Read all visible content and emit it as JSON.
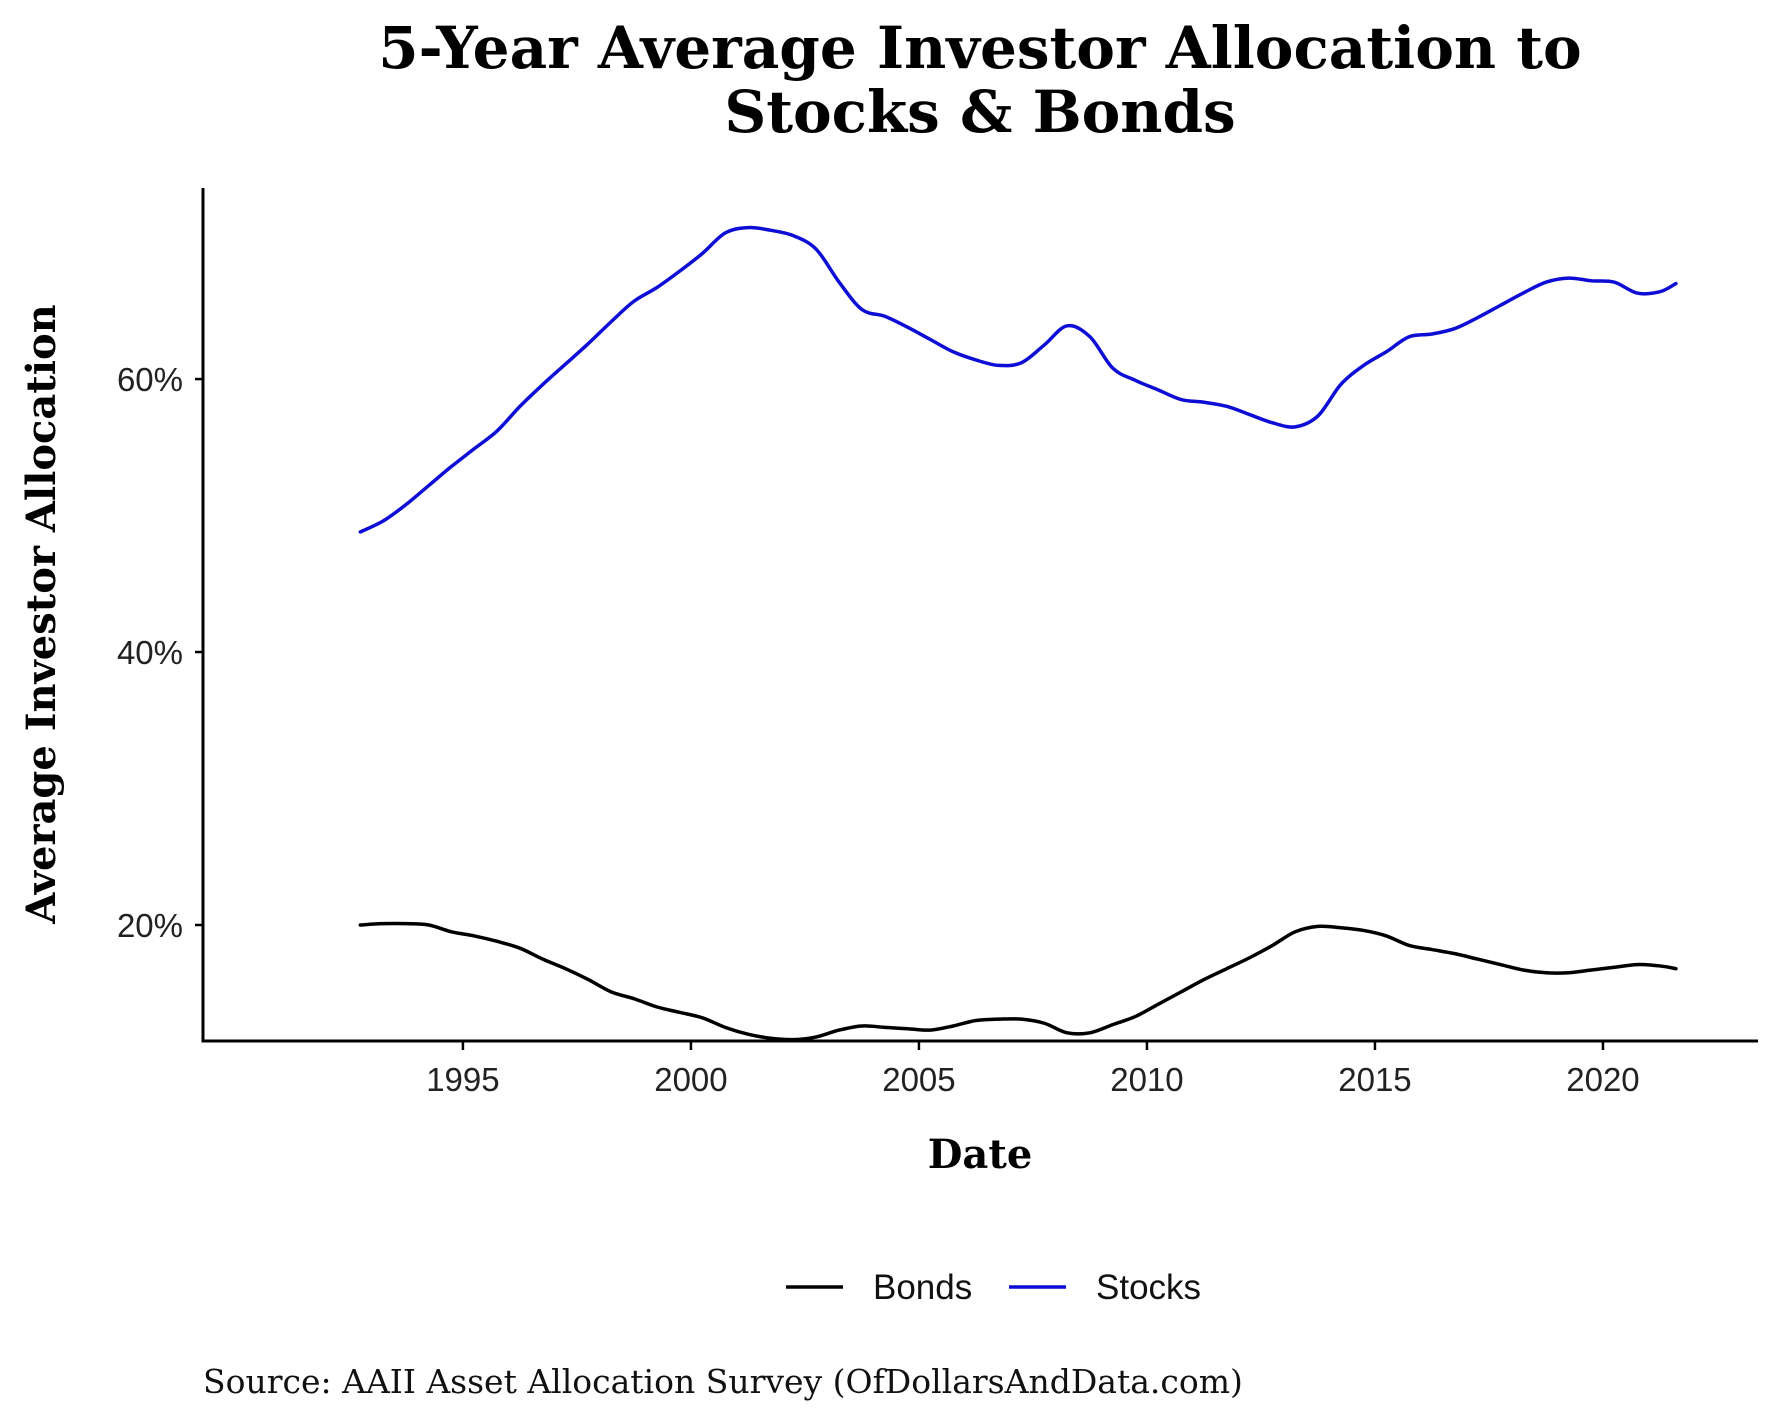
{
  "chart_data": {
    "type": "line",
    "title_lines": [
      "5-Year Average Investor Allocation to",
      "Stocks & Bonds"
    ],
    "xlabel": "Date",
    "ylabel": "Average Investor Allocation",
    "xlim": [
      1989.3,
      2023.4
    ],
    "ylim": [
      0.115,
      0.74
    ],
    "x_ticks": [
      1995,
      2000,
      2005,
      2010,
      2015,
      2020
    ],
    "x_tick_labels": [
      "1995",
      "2000",
      "2005",
      "2010",
      "2015",
      "2020"
    ],
    "y_ticks": [
      0.2,
      0.4,
      0.6
    ],
    "y_tick_labels": [
      "20%",
      "40%",
      "60%"
    ],
    "grid": false,
    "legend_position": "bottom",
    "series": [
      {
        "name": "Bonds",
        "color": "#000000",
        "x": [
          1992.75,
          1993.25,
          1993.75,
          1994.25,
          1994.75,
          1995.25,
          1995.75,
          1996.25,
          1996.75,
          1997.25,
          1997.75,
          1998.25,
          1998.75,
          1999.25,
          1999.75,
          2000.25,
          2000.75,
          2001.25,
          2001.75,
          2002.25,
          2002.75,
          2003.25,
          2003.75,
          2004.25,
          2004.75,
          2005.25,
          2005.75,
          2006.25,
          2006.75,
          2007.25,
          2007.75,
          2008.25,
          2008.75,
          2009.25,
          2009.75,
          2010.25,
          2010.75,
          2011.25,
          2011.75,
          2012.25,
          2012.75,
          2013.25,
          2013.75,
          2014.25,
          2014.75,
          2015.25,
          2015.75,
          2016.25,
          2016.75,
          2017.25,
          2017.75,
          2018.25,
          2018.75,
          2019.25,
          2019.75,
          2020.25,
          2020.75,
          2021.25,
          2021.6
        ],
        "y": [
          0.2,
          0.201,
          0.201,
          0.2,
          0.195,
          0.192,
          0.188,
          0.183,
          0.175,
          0.168,
          0.16,
          0.151,
          0.146,
          0.14,
          0.136,
          0.132,
          0.125,
          0.12,
          0.117,
          0.116,
          0.118,
          0.123,
          0.126,
          0.125,
          0.124,
          0.123,
          0.126,
          0.13,
          0.131,
          0.131,
          0.128,
          0.121,
          0.121,
          0.127,
          0.133,
          0.142,
          0.151,
          0.16,
          0.168,
          0.176,
          0.185,
          0.195,
          0.199,
          0.198,
          0.196,
          0.192,
          0.185,
          0.182,
          0.179,
          0.175,
          0.171,
          0.167,
          0.165,
          0.165,
          0.167,
          0.169,
          0.171,
          0.17,
          0.168
        ]
      },
      {
        "name": "Stocks",
        "color": "#0d0dd6",
        "x": [
          1992.75,
          1993.25,
          1993.75,
          1994.25,
          1994.75,
          1995.25,
          1995.75,
          1996.25,
          1996.75,
          1997.25,
          1997.75,
          1998.25,
          1998.75,
          1999.25,
          1999.75,
          2000.25,
          2000.75,
          2001.25,
          2001.75,
          2002.25,
          2002.75,
          2003.25,
          2003.75,
          2004.25,
          2004.75,
          2005.25,
          2005.75,
          2006.25,
          2006.75,
          2007.25,
          2007.75,
          2008.25,
          2008.75,
          2009.25,
          2009.75,
          2010.25,
          2010.75,
          2011.25,
          2011.75,
          2012.25,
          2012.75,
          2013.25,
          2013.75,
          2014.25,
          2014.75,
          2015.25,
          2015.75,
          2016.25,
          2016.75,
          2017.25,
          2017.75,
          2018.25,
          2018.75,
          2019.25,
          2019.75,
          2020.25,
          2020.75,
          2021.25,
          2021.6
        ],
        "y": [
          0.488,
          0.496,
          0.508,
          0.522,
          0.536,
          0.549,
          0.562,
          0.58,
          0.596,
          0.611,
          0.626,
          0.642,
          0.657,
          0.667,
          0.679,
          0.692,
          0.707,
          0.711,
          0.709,
          0.705,
          0.695,
          0.671,
          0.651,
          0.646,
          0.638,
          0.629,
          0.62,
          0.614,
          0.61,
          0.612,
          0.625,
          0.639,
          0.631,
          0.608,
          0.599,
          0.592,
          0.585,
          0.583,
          0.58,
          0.574,
          0.568,
          0.565,
          0.573,
          0.596,
          0.61,
          0.62,
          0.631,
          0.633,
          0.637,
          0.645,
          0.654,
          0.663,
          0.671,
          0.674,
          0.672,
          0.671,
          0.663,
          0.664,
          0.67
        ]
      }
    ]
  },
  "source": "Source: AAII Asset Allocation Survey (OfDollarsAndData.com)"
}
